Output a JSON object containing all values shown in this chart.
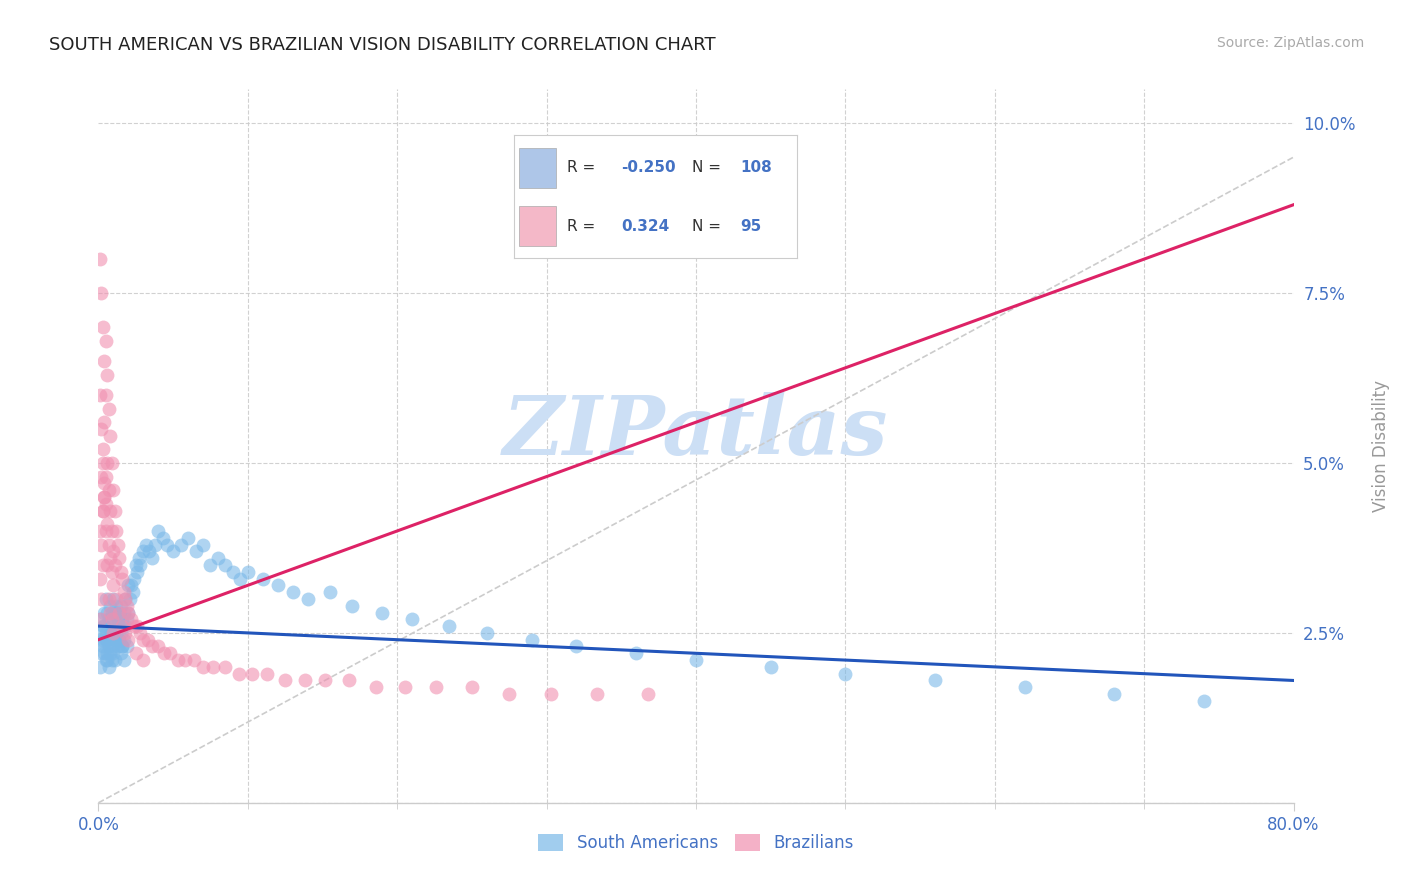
{
  "title": "SOUTH AMERICAN VS BRAZILIAN VISION DISABILITY CORRELATION CHART",
  "source_text": "Source: ZipAtlas.com",
  "ylabel": "Vision Disability",
  "xlim": [
    0.0,
    0.8
  ],
  "ylim": [
    0.0,
    0.105
  ],
  "yticks": [
    0.0,
    0.025,
    0.05,
    0.075,
    0.1
  ],
  "ytick_labels": [
    "",
    "2.5%",
    "5.0%",
    "7.5%",
    "10.0%"
  ],
  "xtick_left_label": "0.0%",
  "xtick_right_label": "80.0%",
  "title_color": "#222222",
  "title_fontsize": 13,
  "tick_color": "#4472c4",
  "background_color": "#ffffff",
  "grid_color": "#cccccc",
  "watermark_text": "ZIPatlas",
  "watermark_color": "#ccdff5",
  "legend_R1": "-0.250",
  "legend_N1": "108",
  "legend_R2": "0.324",
  "legend_N2": "95",
  "legend_color1": "#aec6e8",
  "legend_color2": "#f4b8c8",
  "scatter1_color": "#7ab8e8",
  "scatter2_color": "#f090b0",
  "trend1_color": "#2255bb",
  "trend2_color": "#dd2266",
  "ref_line_color": "#cccccc",
  "sa_trend_x0": 0.0,
  "sa_trend_y0": 0.026,
  "sa_trend_x1": 0.8,
  "sa_trend_y1": 0.018,
  "br_trend_x0": 0.0,
  "br_trend_y0": 0.024,
  "br_trend_x1": 0.3,
  "br_trend_y1": 0.048,
  "south_americans_x": [
    0.001,
    0.001,
    0.002,
    0.003,
    0.003,
    0.004,
    0.004,
    0.005,
    0.005,
    0.005,
    0.006,
    0.006,
    0.006,
    0.007,
    0.007,
    0.008,
    0.008,
    0.008,
    0.009,
    0.009,
    0.009,
    0.01,
    0.01,
    0.01,
    0.011,
    0.011,
    0.012,
    0.012,
    0.013,
    0.013,
    0.014,
    0.014,
    0.015,
    0.015,
    0.016,
    0.016,
    0.017,
    0.017,
    0.018,
    0.018,
    0.019,
    0.019,
    0.02,
    0.02,
    0.021,
    0.022,
    0.023,
    0.024,
    0.025,
    0.026,
    0.027,
    0.028,
    0.03,
    0.032,
    0.034,
    0.036,
    0.038,
    0.04,
    0.043,
    0.046,
    0.05,
    0.055,
    0.06,
    0.065,
    0.07,
    0.075,
    0.08,
    0.085,
    0.09,
    0.095,
    0.1,
    0.11,
    0.12,
    0.13,
    0.14,
    0.155,
    0.17,
    0.19,
    0.21,
    0.235,
    0.26,
    0.29,
    0.32,
    0.36,
    0.4,
    0.45,
    0.5,
    0.56,
    0.62,
    0.68,
    0.74,
    0.001,
    0.002,
    0.003,
    0.004,
    0.005,
    0.006,
    0.007,
    0.008,
    0.009,
    0.01,
    0.011,
    0.012,
    0.013,
    0.014,
    0.015,
    0.016,
    0.017
  ],
  "south_americans_y": [
    0.027,
    0.024,
    0.025,
    0.026,
    0.023,
    0.028,
    0.022,
    0.03,
    0.025,
    0.021,
    0.028,
    0.024,
    0.021,
    0.027,
    0.023,
    0.029,
    0.025,
    0.022,
    0.028,
    0.024,
    0.021,
    0.03,
    0.026,
    0.022,
    0.028,
    0.024,
    0.029,
    0.025,
    0.027,
    0.023,
    0.028,
    0.024,
    0.029,
    0.025,
    0.027,
    0.023,
    0.028,
    0.024,
    0.03,
    0.026,
    0.027,
    0.023,
    0.032,
    0.028,
    0.03,
    0.032,
    0.031,
    0.033,
    0.035,
    0.034,
    0.036,
    0.035,
    0.037,
    0.038,
    0.037,
    0.036,
    0.038,
    0.04,
    0.039,
    0.038,
    0.037,
    0.038,
    0.039,
    0.037,
    0.038,
    0.035,
    0.036,
    0.035,
    0.034,
    0.033,
    0.034,
    0.033,
    0.032,
    0.031,
    0.03,
    0.031,
    0.029,
    0.028,
    0.027,
    0.026,
    0.025,
    0.024,
    0.023,
    0.022,
    0.021,
    0.02,
    0.019,
    0.018,
    0.017,
    0.016,
    0.015,
    0.02,
    0.022,
    0.024,
    0.026,
    0.024,
    0.022,
    0.02,
    0.027,
    0.025,
    0.023,
    0.021,
    0.028,
    0.026,
    0.024,
    0.022,
    0.023,
    0.021
  ],
  "brazilians_x": [
    0.001,
    0.001,
    0.001,
    0.002,
    0.002,
    0.002,
    0.003,
    0.003,
    0.003,
    0.004,
    0.004,
    0.005,
    0.005,
    0.006,
    0.006,
    0.007,
    0.007,
    0.008,
    0.008,
    0.009,
    0.009,
    0.01,
    0.01,
    0.011,
    0.011,
    0.012,
    0.013,
    0.014,
    0.015,
    0.016,
    0.017,
    0.018,
    0.019,
    0.02,
    0.022,
    0.024,
    0.026,
    0.028,
    0.03,
    0.033,
    0.036,
    0.04,
    0.044,
    0.048,
    0.053,
    0.058,
    0.064,
    0.07,
    0.077,
    0.085,
    0.094,
    0.103,
    0.113,
    0.125,
    0.138,
    0.152,
    0.168,
    0.186,
    0.205,
    0.226,
    0.25,
    0.275,
    0.303,
    0.334,
    0.368,
    0.001,
    0.002,
    0.003,
    0.004,
    0.005,
    0.001,
    0.002,
    0.003,
    0.004,
    0.005,
    0.006,
    0.007,
    0.008,
    0.009,
    0.01,
    0.003,
    0.004,
    0.005,
    0.006,
    0.007,
    0.008,
    0.009,
    0.01,
    0.012,
    0.014,
    0.016,
    0.018,
    0.02,
    0.025,
    0.03
  ],
  "brazilians_y": [
    0.04,
    0.033,
    0.027,
    0.048,
    0.038,
    0.03,
    0.052,
    0.043,
    0.035,
    0.056,
    0.045,
    0.06,
    0.048,
    0.063,
    0.05,
    0.058,
    0.046,
    0.054,
    0.043,
    0.05,
    0.04,
    0.046,
    0.037,
    0.043,
    0.035,
    0.04,
    0.038,
    0.036,
    0.034,
    0.033,
    0.031,
    0.03,
    0.029,
    0.028,
    0.027,
    0.026,
    0.026,
    0.025,
    0.024,
    0.024,
    0.023,
    0.023,
    0.022,
    0.022,
    0.021,
    0.021,
    0.021,
    0.02,
    0.02,
    0.02,
    0.019,
    0.019,
    0.019,
    0.018,
    0.018,
    0.018,
    0.018,
    0.017,
    0.017,
    0.017,
    0.017,
    0.016,
    0.016,
    0.016,
    0.016,
    0.08,
    0.075,
    0.07,
    0.065,
    0.068,
    0.06,
    0.055,
    0.05,
    0.045,
    0.04,
    0.035,
    0.03,
    0.028,
    0.027,
    0.025,
    0.043,
    0.047,
    0.044,
    0.041,
    0.038,
    0.036,
    0.034,
    0.032,
    0.03,
    0.028,
    0.026,
    0.025,
    0.024,
    0.022,
    0.021
  ]
}
